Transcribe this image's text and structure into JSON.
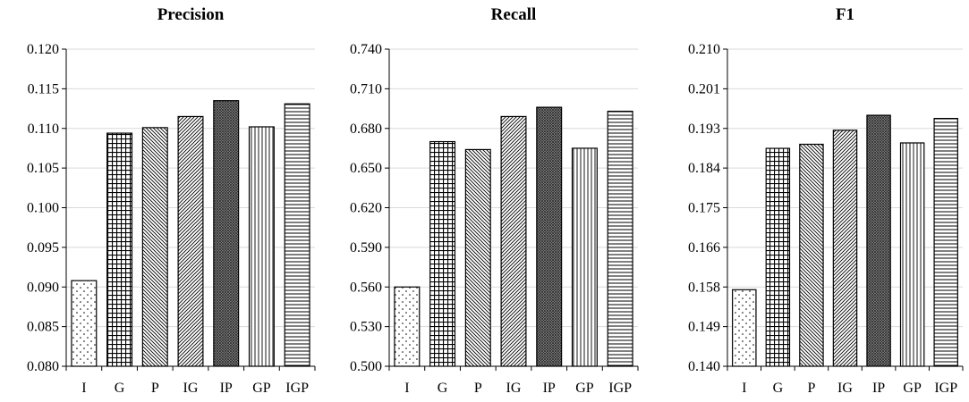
{
  "chart_data": [
    {
      "type": "bar",
      "title": "Precision",
      "categories": [
        "I",
        "G",
        "P",
        "IG",
        "IP",
        "GP",
        "IGP"
      ],
      "values": [
        0.0908,
        0.1094,
        0.1101,
        0.1115,
        0.1135,
        0.1102,
        0.1131
      ],
      "ylim": [
        0.08,
        0.12
      ],
      "yticks": [
        "0.080",
        "0.085",
        "0.090",
        "0.095",
        "0.100",
        "0.105",
        "0.110",
        "0.115",
        "0.120"
      ],
      "grid": true,
      "legend": "none"
    },
    {
      "type": "bar",
      "title": "Recall",
      "categories": [
        "I",
        "G",
        "P",
        "IG",
        "IP",
        "GP",
        "IGP"
      ],
      "values": [
        0.56,
        0.67,
        0.664,
        0.689,
        0.696,
        0.665,
        0.693
      ],
      "ylim": [
        0.5,
        0.74
      ],
      "yticks": [
        "0.500",
        "0.530",
        "0.560",
        "0.590",
        "0.620",
        "0.650",
        "0.680",
        "0.710",
        "0.740"
      ],
      "grid": true,
      "legend": "none"
    },
    {
      "type": "bar",
      "title": "F1",
      "categories": [
        "I",
        "G",
        "P",
        "IG",
        "IP",
        "GP",
        "IGP"
      ],
      "values": [
        0.1569,
        0.1881,
        0.189,
        0.1921,
        0.1954,
        0.1893,
        0.1947
      ],
      "ylim": [
        0.14,
        0.21
      ],
      "yticks": [
        "0.140",
        "0.149",
        "0.158",
        "0.166",
        "0.175",
        "0.184",
        "0.193",
        "0.201",
        "0.210"
      ],
      "grid": true,
      "legend": "none"
    }
  ]
}
